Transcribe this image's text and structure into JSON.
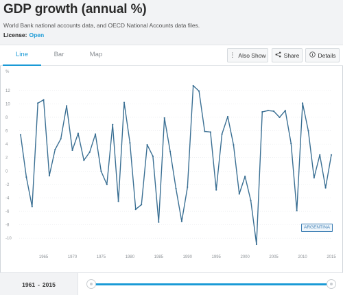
{
  "header": {
    "title": "GDP growth (annual %)",
    "source": "World Bank national accounts data, and OECD National Accounts data files.",
    "license_label": "License:",
    "license_value": "Open"
  },
  "tabs": [
    {
      "label": "Line",
      "active": true
    },
    {
      "label": "Bar",
      "active": false
    },
    {
      "label": "Map",
      "active": false
    }
  ],
  "actions": {
    "also_show": "Also Show",
    "share": "Share",
    "details": "Details"
  },
  "footer": {
    "range_start": "1961",
    "range_sep": "-",
    "range_end": "2015"
  },
  "colors": {
    "line": "#3a6f93",
    "accent": "#1a9ad6",
    "grid": "#e3e6e9"
  },
  "chart_data": {
    "type": "line",
    "title": "",
    "xlabel": "",
    "ylabel": "%",
    "xlim": [
      1961,
      2015
    ],
    "ylim": [
      -11,
      13
    ],
    "x_ticks": [
      1965,
      1970,
      1975,
      1980,
      1985,
      1990,
      1995,
      2000,
      2005,
      2010,
      2015
    ],
    "y_ticks": [
      -10,
      -8,
      -6,
      -4,
      -2,
      0,
      2,
      4,
      6,
      8,
      10,
      12
    ],
    "grid": true,
    "series": [
      {
        "name": "ARGENTINA",
        "x": [
          1961,
          1962,
          1963,
          1964,
          1965,
          1966,
          1967,
          1968,
          1969,
          1970,
          1971,
          1972,
          1973,
          1974,
          1975,
          1976,
          1977,
          1978,
          1979,
          1980,
          1981,
          1982,
          1983,
          1984,
          1985,
          1986,
          1987,
          1988,
          1989,
          1990,
          1991,
          1992,
          1993,
          1994,
          1995,
          1996,
          1997,
          1998,
          1999,
          2000,
          2001,
          2002,
          2003,
          2004,
          2005,
          2006,
          2007,
          2008,
          2009,
          2010,
          2011,
          2012,
          2013,
          2014,
          2015
        ],
        "values": [
          5.4,
          -0.9,
          -5.3,
          10.1,
          10.6,
          -0.7,
          3.2,
          4.8,
          9.7,
          3.1,
          5.6,
          1.6,
          2.8,
          5.5,
          -0.03,
          -2.0,
          6.9,
          -4.5,
          10.2,
          4.2,
          -5.7,
          -5.0,
          3.9,
          2.2,
          -7.6,
          7.9,
          2.9,
          -2.6,
          -7.5,
          -2.4,
          12.7,
          11.9,
          5.9,
          5.8,
          -2.8,
          5.5,
          8.1,
          3.9,
          -3.4,
          -0.8,
          -4.4,
          -10.9,
          8.8,
          9.0,
          8.9,
          8.0,
          9.0,
          4.1,
          -5.9,
          10.1,
          6.0,
          -1.0,
          2.4,
          -2.5,
          2.4
        ]
      }
    ],
    "annotation": "ARGENTINA"
  }
}
